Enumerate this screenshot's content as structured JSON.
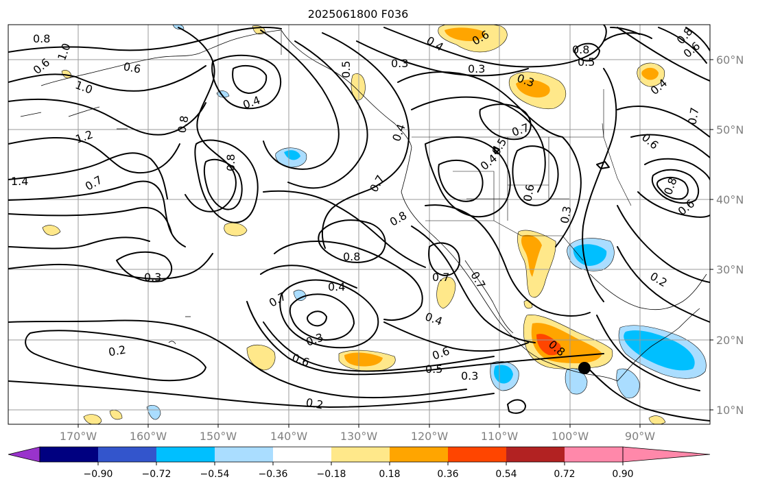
{
  "title": "2025061800 F036",
  "lat_labels": [
    "60°N",
    "50°N",
    "40°N",
    "30°N",
    "20°N",
    "10°N"
  ],
  "lon_labels": [
    "170°W",
    "160°W",
    "150°W",
    "140°W",
    "130°W",
    "120°W",
    "110°W",
    "100°W",
    "90°W"
  ],
  "colorbar": {
    "tick_labels": [
      "−0.90",
      "−0.72",
      "−0.54",
      "−0.36",
      "−0.18",
      "0.18",
      "0.36",
      "0.54",
      "0.72",
      "0.90"
    ],
    "colors": [
      "#9933cc",
      "#000080",
      "#3355cc",
      "#00bfff",
      "#aaddff",
      "#ffffff",
      "#ffe88a",
      "#ffa500",
      "#ff4500",
      "#b22222",
      "#ff88aa"
    ]
  },
  "contour_labels": [
    "0.8",
    "1.0",
    "0.6",
    "1.0",
    "1.2",
    "1.4",
    "0.7",
    "0.8",
    "0.4",
    "0.8",
    "0.5",
    "0.3",
    "0.4",
    "0.6",
    "0.3",
    "0.3",
    "0.8",
    "0.5",
    "0.4",
    "0.5",
    "0.7",
    "0.4",
    "0.6",
    "0.3",
    "0.6",
    "0.8",
    "0.6",
    "0.4",
    "0.7",
    "0.8",
    "0.7",
    "0.8",
    "0.3",
    "0.7",
    "0.4",
    "0.3",
    "0.6",
    "0.2",
    "0.5",
    "0.3",
    "0.2",
    "0.7",
    "0.8",
    "0.4",
    "0.6",
    "0.2",
    "0.6",
    "0.8",
    "0.7",
    "0.6"
  ],
  "marker": "storm-center-dot"
}
